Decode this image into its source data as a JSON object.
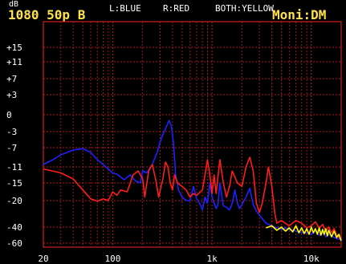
{
  "header": {
    "unit": "dB",
    "format": "1080 50p B",
    "legend_left": "L:BLUE",
    "legend_right": "R:RED",
    "legend_both": "BOTH:YELLOW",
    "monitor": "Moni:DM"
  },
  "colors": {
    "background": "#000000",
    "grid": "#b01818",
    "plot_border": "#d02020",
    "header_text": "#ffe24a",
    "label_text": "#ffffff",
    "left": "#2020ff",
    "right": "#ff1c1c",
    "both": "#ffff00"
  },
  "chart_data": {
    "type": "line",
    "title": "",
    "xlabel": "",
    "ylabel": "dB",
    "x_scale": "log",
    "xlim": [
      20,
      20000
    ],
    "y_ticks": [
      "+15",
      "+11",
      "+7",
      "+3",
      "0",
      "-3",
      "-7",
      "-11",
      "-15",
      "-20",
      "-40",
      "-60"
    ],
    "y_tick_values": [
      15,
      11,
      7,
      3,
      0,
      -3,
      -7,
      -11,
      -15,
      -20,
      -40,
      -60
    ],
    "x_ticks": [
      "20",
      "100",
      "1k",
      "10k"
    ],
    "x_tick_values": [
      20,
      100,
      1000,
      10000
    ],
    "grid": true,
    "series": [
      {
        "name": "L:BLUE",
        "color": "#2020ff",
        "points": [
          [
            20,
            -10.5
          ],
          [
            25,
            -9.5
          ],
          [
            30,
            -8.5
          ],
          [
            40,
            -7.5
          ],
          [
            50,
            -7.2
          ],
          [
            60,
            -8
          ],
          [
            70,
            -9.5
          ],
          [
            80,
            -10.5
          ],
          [
            90,
            -11.5
          ],
          [
            100,
            -12.5
          ],
          [
            110,
            -12.8
          ],
          [
            120,
            -13.5
          ],
          [
            130,
            -14.2
          ],
          [
            150,
            -13
          ],
          [
            170,
            -14.5
          ],
          [
            190,
            -15
          ],
          [
            200,
            -12
          ],
          [
            220,
            -12.5
          ],
          [
            250,
            -10.5
          ],
          [
            280,
            -8
          ],
          [
            310,
            -4.5
          ],
          [
            350,
            -2
          ],
          [
            370,
            -1
          ],
          [
            390,
            -2
          ],
          [
            410,
            -6
          ],
          [
            430,
            -13
          ],
          [
            460,
            -17
          ],
          [
            500,
            -19
          ],
          [
            550,
            -20
          ],
          [
            600,
            -20
          ],
          [
            650,
            -16
          ],
          [
            700,
            -19.5
          ],
          [
            750,
            -22
          ],
          [
            800,
            -27
          ],
          [
            850,
            -19
          ],
          [
            900,
            -22
          ],
          [
            950,
            -15
          ],
          [
            1000,
            -19
          ],
          [
            1100,
            -26
          ],
          [
            1150,
            -23
          ],
          [
            1200,
            -15
          ],
          [
            1300,
            -24
          ],
          [
            1400,
            -25
          ],
          [
            1500,
            -27
          ],
          [
            1600,
            -22
          ],
          [
            1700,
            -17
          ],
          [
            1800,
            -22
          ],
          [
            1900,
            -26
          ],
          [
            2000,
            -23
          ],
          [
            2200,
            -19
          ],
          [
            2400,
            -16.5
          ],
          [
            2600,
            -23
          ],
          [
            2800,
            -28
          ],
          [
            3000,
            -31
          ],
          [
            3500,
            -37
          ],
          [
            4000,
            -39
          ],
          [
            4500,
            -41
          ],
          [
            5000,
            -43
          ],
          [
            5500,
            -41
          ],
          [
            6000,
            -43
          ],
          [
            7000,
            -45
          ],
          [
            8000,
            -47
          ],
          [
            9000,
            -47
          ],
          [
            10000,
            -49
          ],
          [
            11000,
            -45
          ],
          [
            12000,
            -50
          ],
          [
            13000,
            -47
          ],
          [
            14000,
            -52
          ],
          [
            15000,
            -49
          ],
          [
            17000,
            -53
          ],
          [
            20000,
            -56
          ]
        ]
      },
      {
        "name": "R:RED",
        "color": "#ff1c1c",
        "points": [
          [
            20,
            -11.5
          ],
          [
            30,
            -12.5
          ],
          [
            40,
            -14
          ],
          [
            50,
            -17
          ],
          [
            60,
            -19.5
          ],
          [
            70,
            -20.5
          ],
          [
            80,
            -19.5
          ],
          [
            90,
            -20
          ],
          [
            100,
            -17.5
          ],
          [
            110,
            -18.5
          ],
          [
            120,
            -17
          ],
          [
            140,
            -17.5
          ],
          [
            160,
            -13
          ],
          [
            180,
            -12
          ],
          [
            200,
            -14
          ],
          [
            210,
            -19
          ],
          [
            230,
            -12
          ],
          [
            250,
            -10.5
          ],
          [
            270,
            -14
          ],
          [
            290,
            -19
          ],
          [
            320,
            -14
          ],
          [
            340,
            -10
          ],
          [
            360,
            -11
          ],
          [
            380,
            -15
          ],
          [
            400,
            -17
          ],
          [
            420,
            -13
          ],
          [
            450,
            -15
          ],
          [
            500,
            -16
          ],
          [
            550,
            -17
          ],
          [
            600,
            -19
          ],
          [
            650,
            -18
          ],
          [
            700,
            -18.5
          ],
          [
            800,
            -17
          ],
          [
            850,
            -13
          ],
          [
            900,
            -9.5
          ],
          [
            950,
            -13
          ],
          [
            1000,
            -18
          ],
          [
            1050,
            -13
          ],
          [
            1100,
            -18
          ],
          [
            1200,
            -9.5
          ],
          [
            1300,
            -15
          ],
          [
            1400,
            -19
          ],
          [
            1500,
            -16
          ],
          [
            1600,
            -12
          ],
          [
            1800,
            -15
          ],
          [
            2000,
            -16
          ],
          [
            2200,
            -11
          ],
          [
            2400,
            -9
          ],
          [
            2600,
            -12
          ],
          [
            2800,
            -22
          ],
          [
            3000,
            -29
          ],
          [
            3200,
            -22
          ],
          [
            3500,
            -15
          ],
          [
            3700,
            -11
          ],
          [
            4000,
            -16
          ],
          [
            4300,
            -30
          ],
          [
            4500,
            -37
          ],
          [
            5000,
            -35
          ],
          [
            6000,
            -39
          ],
          [
            7000,
            -35
          ],
          [
            8000,
            -37
          ],
          [
            9000,
            -41
          ],
          [
            10000,
            -39
          ],
          [
            11000,
            -36
          ],
          [
            12000,
            -41
          ],
          [
            13000,
            -38
          ],
          [
            14000,
            -45
          ],
          [
            15000,
            -40
          ],
          [
            16000,
            -47
          ],
          [
            17000,
            -42
          ],
          [
            18000,
            -50
          ],
          [
            20000,
            -55
          ]
        ]
      },
      {
        "name": "BOTH:YELLOW",
        "color": "#ffff00",
        "points": [
          [
            3500,
            -41
          ],
          [
            4000,
            -39
          ],
          [
            4500,
            -44
          ],
          [
            5000,
            -40
          ],
          [
            5500,
            -45
          ],
          [
            6000,
            -41
          ],
          [
            6500,
            -46
          ],
          [
            7000,
            -39
          ],
          [
            7500,
            -47
          ],
          [
            8000,
            -41
          ],
          [
            8500,
            -48
          ],
          [
            9000,
            -42
          ],
          [
            9500,
            -49
          ],
          [
            10000,
            -40
          ],
          [
            10500,
            -47
          ],
          [
            11000,
            -42
          ],
          [
            11500,
            -49
          ],
          [
            12000,
            -41
          ],
          [
            12500,
            -50
          ],
          [
            13000,
            -43
          ],
          [
            13500,
            -49
          ],
          [
            14000,
            -42
          ],
          [
            14500,
            -51
          ],
          [
            15000,
            -44
          ],
          [
            16000,
            -52
          ],
          [
            17000,
            -45
          ],
          [
            18000,
            -53
          ],
          [
            19000,
            -49
          ],
          [
            20000,
            -57
          ]
        ]
      }
    ]
  }
}
